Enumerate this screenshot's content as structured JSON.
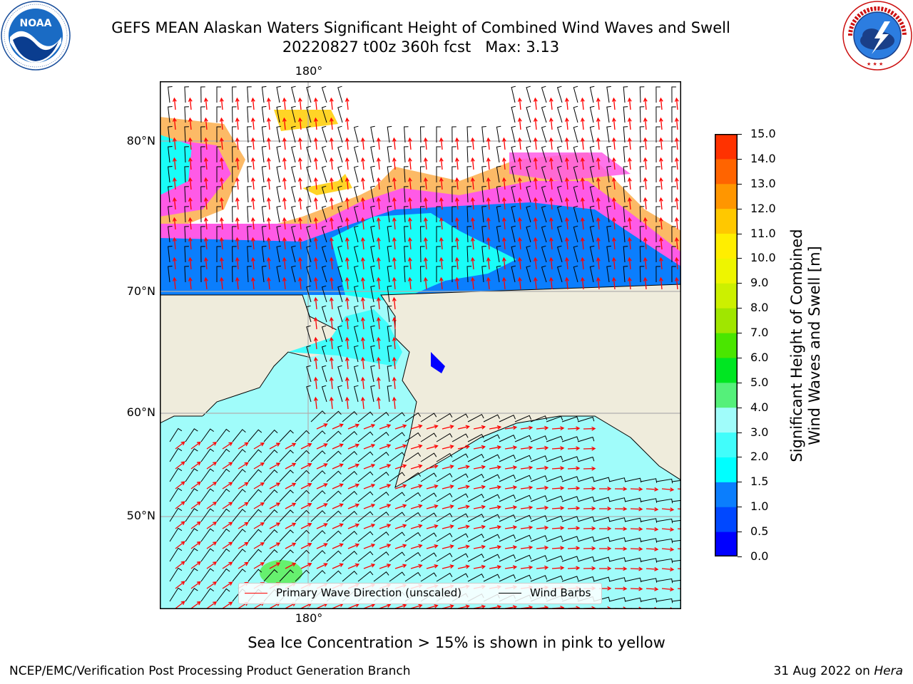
{
  "header": {
    "title_line1": "GEFS MEAN Alaskan Waters Significant Height of Combined Wind Waves and Swell",
    "title_line2": "20220827 t00z 360h fcst   Max: 3.13",
    "noaa_logo_text": "NOAA",
    "noaa_ring_text": "NATIONAL OCEANIC AND ATMOSPHERIC ADMINISTRATION · U.S. DEPARTMENT OF COMMERCE",
    "nws_ring_text": "NATIONAL WEATHER SERVICE"
  },
  "map": {
    "lon_top_label": "180°",
    "lon_bottom_label": "180°",
    "lat_labels": [
      "80°N",
      "70°N",
      "60°N",
      "50°N"
    ],
    "colors": {
      "land": "#efecdc",
      "ocean_light": "#a0fcfa",
      "ocean_cyan": "#19fdf8",
      "ocean_blue": "#0b7efd",
      "ice_pink": "#ff5ae6",
      "ice_orange": "#fcb65e",
      "ice_yellow": "#ffd426",
      "peak_green": "#66f06e",
      "wave_arrow": "#ff0000",
      "wind_barb": "#000000",
      "gridline": "#b0b0b0"
    }
  },
  "colorbar": {
    "title_line1": "Significant Height of Combined",
    "title_line2": "Wind Waves and Swell [m]",
    "ticks": [
      "0.0",
      "0.5",
      "1.0",
      "1.5",
      "2.0",
      "3.0",
      "4.0",
      "5.0",
      "6.0",
      "7.0",
      "8.0",
      "9.0",
      "10.0",
      "11.0",
      "12.0",
      "13.0",
      "14.0",
      "15.0"
    ],
    "colors": [
      "#0000ff",
      "#0048ff",
      "#0b7efd",
      "#00ffff",
      "#41fdfb",
      "#a0fcfa",
      "#55f07a",
      "#00e622",
      "#4ae600",
      "#a0e600",
      "#ccf000",
      "#eef500",
      "#ffee00",
      "#ffc800",
      "#ff9600",
      "#ff6400",
      "#ff3200"
    ]
  },
  "legend": {
    "wave_label": "Primary Wave Direction (unscaled)",
    "wind_label": "Wind Barbs"
  },
  "caption": "Sea Ice Concentration > 15% is shown in pink to yellow",
  "footer": {
    "left": "NCEP/EMC/Verification Post Processing Product Generation Branch",
    "right_prefix": "31 Aug 2022 on ",
    "right_machine": "Hera"
  }
}
